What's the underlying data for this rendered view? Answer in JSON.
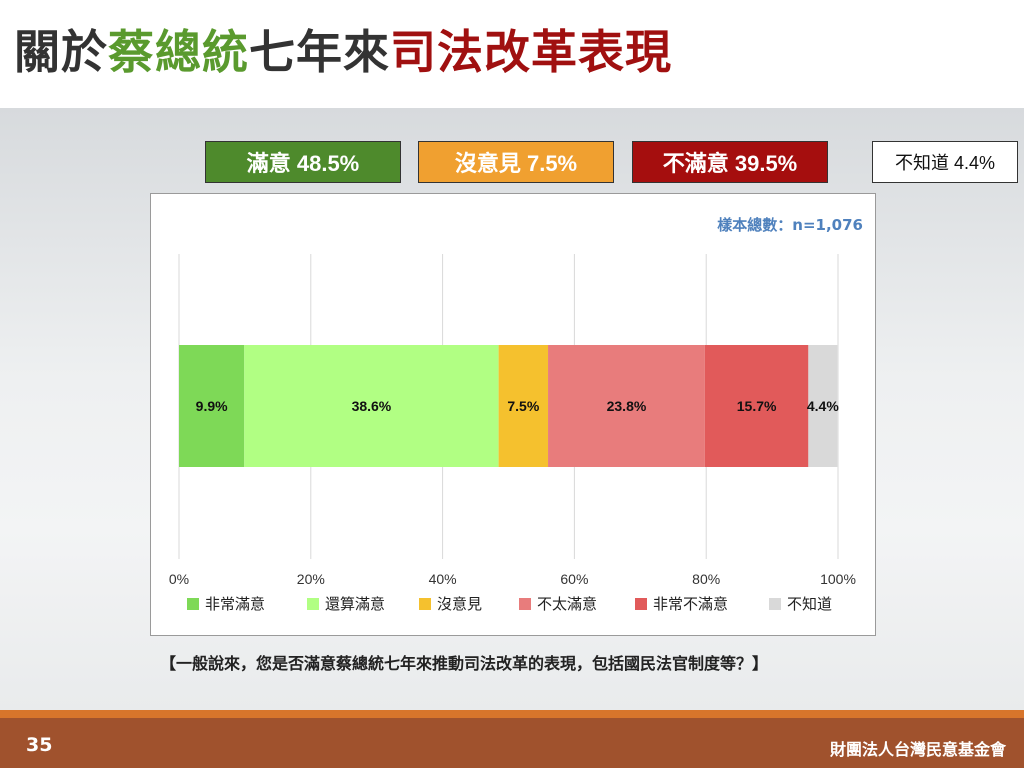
{
  "title": {
    "parts": [
      {
        "text": "關於",
        "color": "#333333"
      },
      {
        "text": "蔡總統",
        "color": "#5a9a2e"
      },
      {
        "text": "七年來",
        "color": "#333333"
      },
      {
        "text": "司法改革表現",
        "color": "#a01010"
      }
    ]
  },
  "summary": [
    {
      "label": "滿意 48.5%",
      "bg": "#4e8a2c",
      "fg": "#ffffff"
    },
    {
      "label": "沒意見 7.5%",
      "bg": "#f0a030",
      "fg": "#ffffff"
    },
    {
      "label": "不滿意 39.5%",
      "bg": "#a50e0e",
      "fg": "#ffffff"
    },
    {
      "label": "不知道 4.4%",
      "bg": "#ffffff",
      "fg": "#111111"
    }
  ],
  "sample_size": "樣本總數：n=1,076",
  "chart_data": {
    "type": "bar",
    "orientation": "horizontal-stacked",
    "categories": [
      ""
    ],
    "series": [
      {
        "name": "非常滿意",
        "values": [
          9.9
        ],
        "label": "9.9%",
        "color": "#7ed957"
      },
      {
        "name": "還算滿意",
        "values": [
          38.6
        ],
        "label": "38.6%",
        "color": "#b1ff83"
      },
      {
        "name": "沒意見",
        "values": [
          7.5
        ],
        "label": "7.5%",
        "color": "#f5c12e"
      },
      {
        "name": "不太滿意",
        "values": [
          23.8
        ],
        "label": "23.8%",
        "color": "#e87c7c"
      },
      {
        "name": "非常不滿意",
        "values": [
          15.7
        ],
        "label": "15.7%",
        "color": "#e15a5a"
      },
      {
        "name": "不知道",
        "values": [
          4.4
        ],
        "label": "4.4%",
        "color": "#d9d9d9"
      }
    ],
    "xlim": [
      0,
      100
    ],
    "xticks": [
      "0%",
      "20%",
      "40%",
      "60%",
      "80%",
      "100%"
    ],
    "grid": true,
    "legend": "bottom"
  },
  "question": "【一般說來，您是否滿意蔡總統七年來推動司法改革的表現，包括國民法官制度等？】",
  "footer": {
    "page": "35",
    "org": "財團法人台灣民意基金會"
  }
}
